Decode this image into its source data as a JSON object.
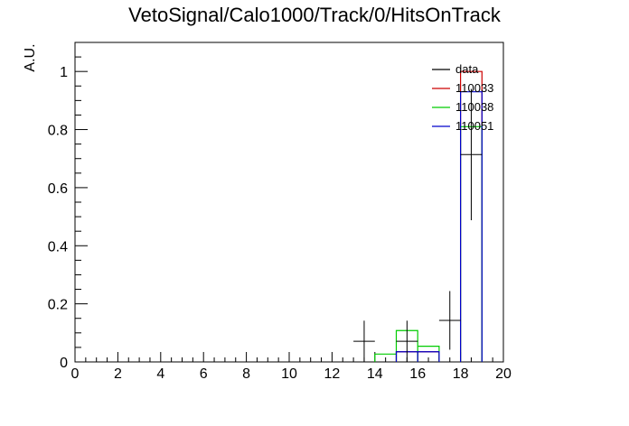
{
  "chart_data": {
    "type": "histogram",
    "title": "VetoSignal/Calo1000/Track/0/HitsOnTrack",
    "xlabel": "",
    "ylabel": "A.U.",
    "xlim": [
      0,
      20
    ],
    "ylim": [
      0,
      1.1
    ],
    "x_ticks": [
      0,
      2,
      4,
      6,
      8,
      10,
      12,
      14,
      16,
      18,
      20
    ],
    "y_ticks": [
      0,
      0.2,
      0.4,
      0.6,
      0.8,
      1
    ],
    "y_tick_labels": [
      "0",
      "0.2",
      "0.4",
      "0.6",
      "0.8",
      "1"
    ],
    "legend_position": "top-right",
    "series": [
      {
        "name": "data",
        "color": "#000000",
        "style": "points-with-errors",
        "points": [
          {
            "x": 13.5,
            "y": 0.071,
            "err": 0.071
          },
          {
            "x": 15.5,
            "y": 0.071,
            "err": 0.071
          },
          {
            "x": 17.5,
            "y": 0.143,
            "err": 0.101
          },
          {
            "x": 18.5,
            "y": 0.714,
            "err": 0.226
          }
        ]
      },
      {
        "name": "110033",
        "color": "#cc0000",
        "style": "step",
        "bins": [
          {
            "x0": 15,
            "x1": 16,
            "y": 0.035
          },
          {
            "x0": 16,
            "x1": 17,
            "y": 0.035
          },
          {
            "x0": 18,
            "x1": 19,
            "y": 1.0
          }
        ]
      },
      {
        "name": "110038",
        "color": "#00cc00",
        "style": "step",
        "bins": [
          {
            "x0": 14,
            "x1": 15,
            "y": 0.027
          },
          {
            "x0": 15,
            "x1": 16,
            "y": 0.108
          },
          {
            "x0": 16,
            "x1": 17,
            "y": 0.054
          },
          {
            "x0": 18,
            "x1": 19,
            "y": 0.81
          }
        ]
      },
      {
        "name": "110051",
        "color": "#0000cc",
        "style": "step",
        "bins": [
          {
            "x0": 15,
            "x1": 16,
            "y": 0.035
          },
          {
            "x0": 16,
            "x1": 17,
            "y": 0.035
          },
          {
            "x0": 18,
            "x1": 19,
            "y": 0.93
          }
        ]
      }
    ]
  }
}
